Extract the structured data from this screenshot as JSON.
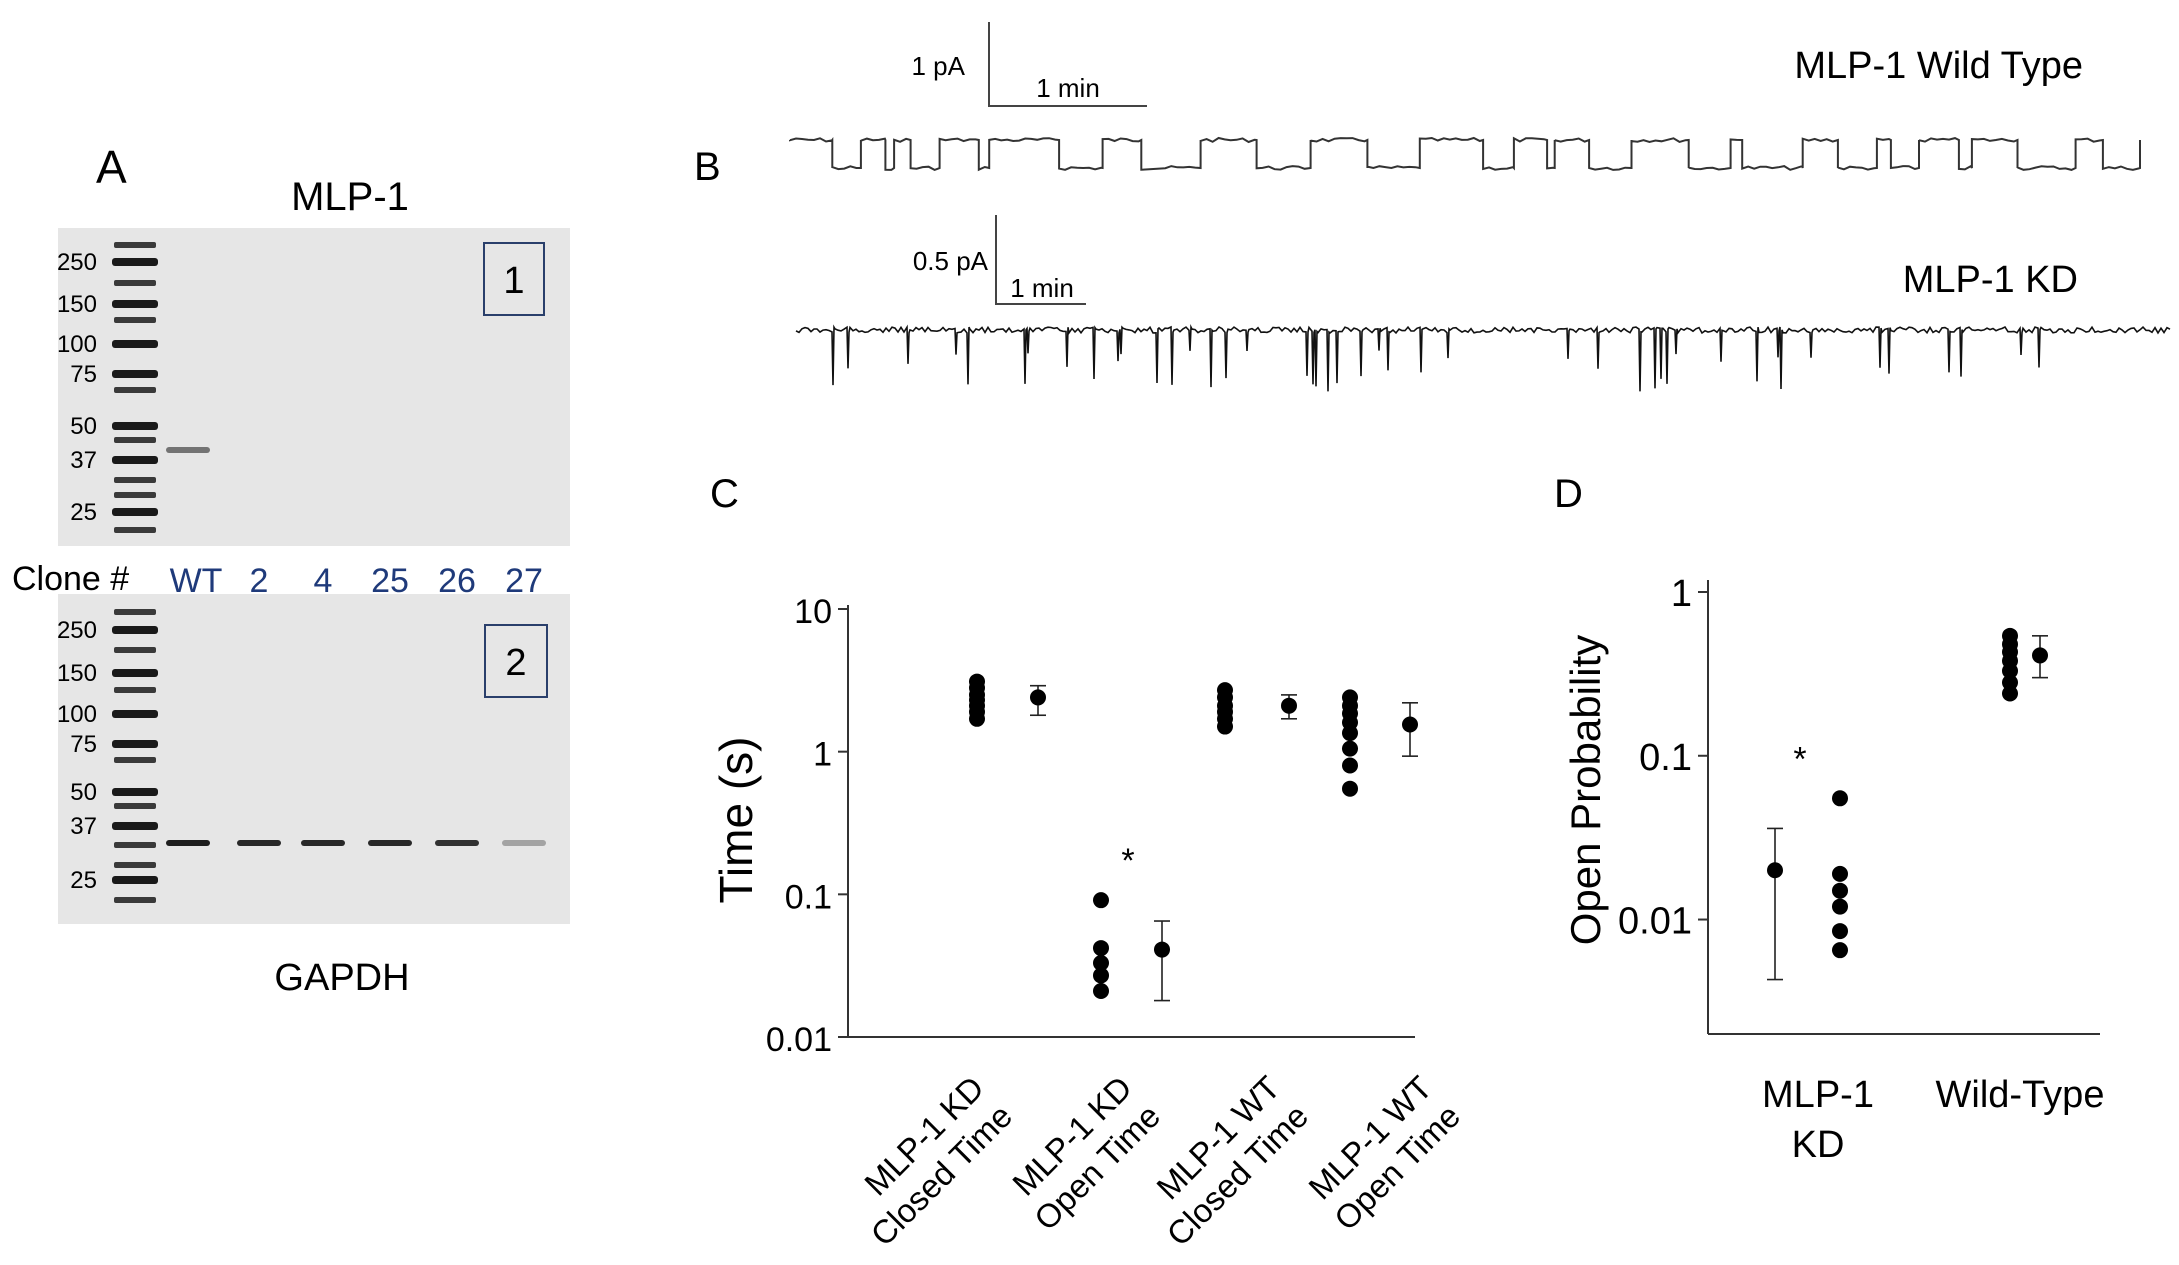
{
  "panel_a": {
    "label": "A",
    "top_title": "MLP-1",
    "bottom_title": "GAPDH",
    "blot1_id": "1",
    "blot2_id": "2",
    "clone_label": "Clone #",
    "clones": [
      "WT",
      "2",
      "4",
      "25",
      "26",
      "27"
    ],
    "ladder_blot1": [
      "250",
      "150",
      "100",
      "75",
      "50",
      "37",
      "25"
    ],
    "ladder_blot2": [
      "250",
      "150",
      "100",
      "75",
      "50",
      "37",
      "25"
    ],
    "blot1_band_intensity": [
      0.55,
      0,
      0,
      0,
      0,
      0
    ],
    "blot2_band_intensity": [
      1.0,
      0.95,
      0.95,
      0.95,
      0.9,
      0.3
    ]
  },
  "panel_b": {
    "label": "B",
    "wt": {
      "title": "MLP-1  Wild Type",
      "scale_y": "1 pA",
      "scale_x": "1 min"
    },
    "kd": {
      "title": "MLP-1 KD",
      "scale_y": "0.5 pA",
      "scale_x": "1 min"
    }
  },
  "chart_data": [
    {
      "panel": "C",
      "type": "scatter",
      "yscale": "log",
      "ylabel": "Time (s)",
      "ylim": [
        0.01,
        10
      ],
      "yticks": [
        "10",
        "1",
        "0.1",
        "0.01"
      ],
      "groups": [
        {
          "label_line1": "MLP-1 KD",
          "label_line2": "Closed Time",
          "points": [
            1.7,
            1.9,
            2.1,
            2.3,
            2.5,
            2.8,
            3.1
          ],
          "mean": 2.4,
          "err_low": 1.8,
          "err_high": 2.9
        },
        {
          "label_line1": "MLP-1 KD",
          "label_line2": "Open Time",
          "points": [
            0.021,
            0.027,
            0.033,
            0.042,
            0.091
          ],
          "mean": 0.041,
          "err_low": 0.018,
          "err_high": 0.065,
          "annotation": "*"
        },
        {
          "label_line1": "MLP-1 WT",
          "label_line2": "Closed Time",
          "points": [
            1.5,
            1.7,
            1.9,
            2.1,
            2.4,
            2.7
          ],
          "mean": 2.1,
          "err_low": 1.7,
          "err_high": 2.5
        },
        {
          "label_line1": "MLP-1 WT",
          "label_line2": "Open Time",
          "points": [
            0.55,
            0.8,
            1.05,
            1.35,
            1.6,
            1.85,
            2.1,
            2.4
          ],
          "mean": 1.55,
          "err_low": 0.93,
          "err_high": 2.2
        }
      ]
    },
    {
      "panel": "D",
      "type": "scatter",
      "yscale": "log",
      "ylabel": "Open Probability",
      "ylim": [
        0.002,
        1
      ],
      "yticks": [
        "1",
        "0.1",
        "0.01"
      ],
      "groups": [
        {
          "label_line1": "MLP-1",
          "label_line2": "KD",
          "points": [
            0.0065,
            0.0085,
            0.012,
            0.015,
            0.019,
            0.055
          ],
          "mean": 0.02,
          "err_low": 0.0043,
          "err_high": 0.036,
          "annotation": "*"
        },
        {
          "label_line1": "Wild-Type",
          "label_line2": "",
          "points": [
            0.24,
            0.28,
            0.33,
            0.38,
            0.43,
            0.48,
            0.54
          ],
          "mean": 0.41,
          "err_low": 0.3,
          "err_high": 0.54
        }
      ]
    }
  ]
}
